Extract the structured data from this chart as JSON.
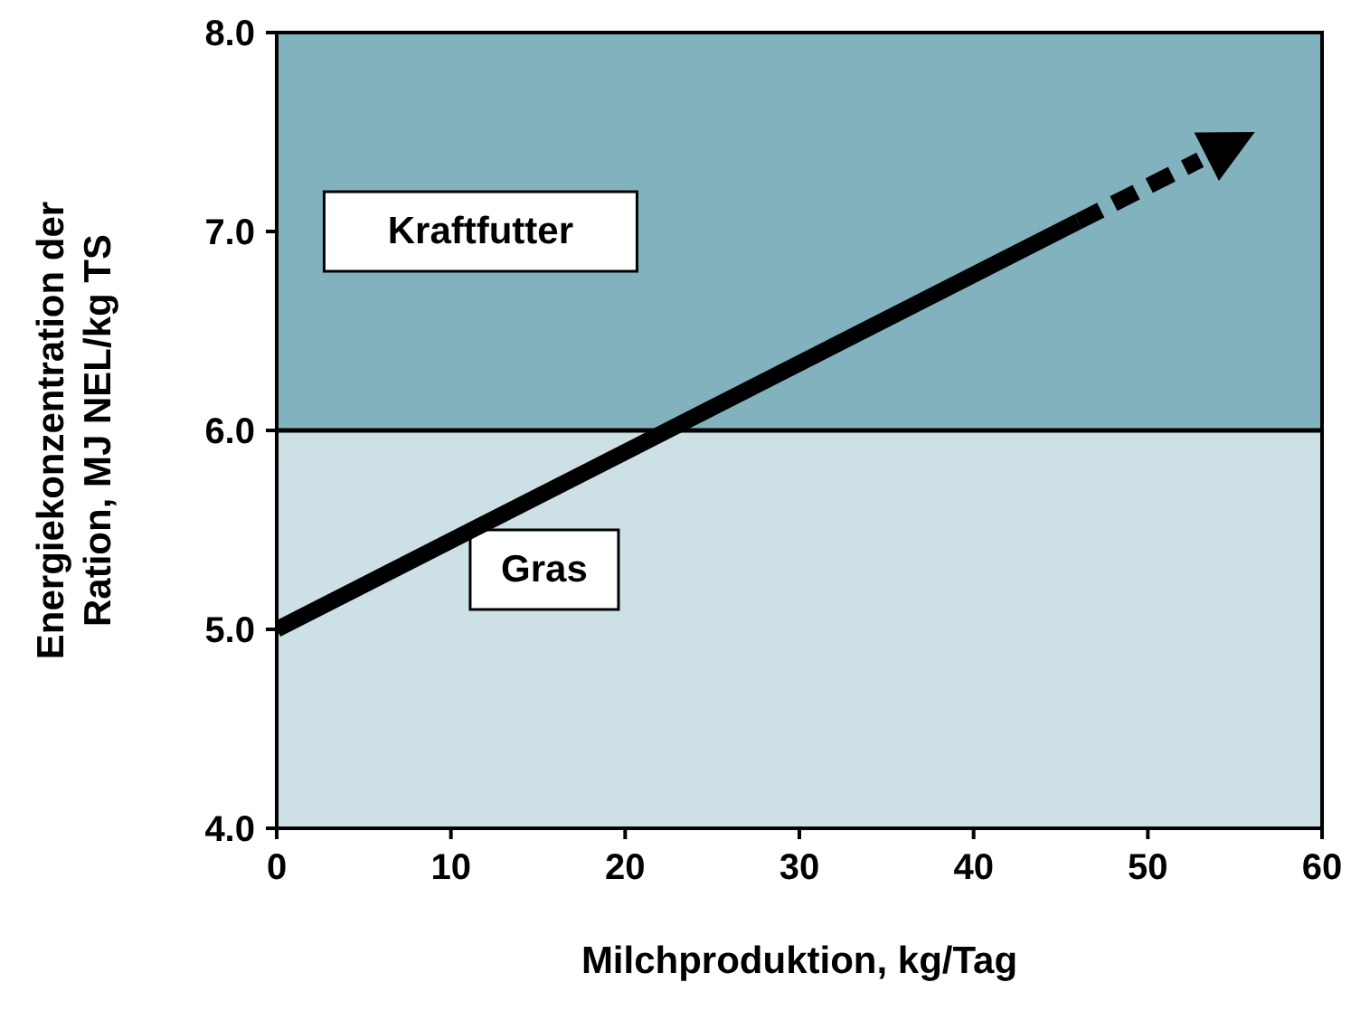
{
  "chart_data": {
    "type": "line",
    "xlabel": "Milchproduktion, kg/Tag",
    "ylabel": "Energiekonzentration der\nRation, MJ NEL/kg TS",
    "xlim": [
      0,
      60
    ],
    "xticks": [
      0,
      10,
      20,
      30,
      40,
      50,
      60
    ],
    "ylim": [
      4,
      8
    ],
    "yticks": [
      {
        "value": 4,
        "label": "4.0"
      },
      {
        "value": 5,
        "label": "5.0"
      },
      {
        "value": 6,
        "label": "6.0"
      },
      {
        "value": 7,
        "label": "7.0"
      },
      {
        "value": 8,
        "label": "8.0"
      }
    ],
    "marker": "none",
    "series": [
      {
        "color": "#000000",
        "line_style": "solid",
        "x": [
          0,
          46
        ],
        "values": [
          5.0,
          7.05
        ]
      },
      {
        "color": "#000000",
        "line_style": "dashed",
        "x": [
          46,
          53
        ],
        "values": [
          7.05,
          7.36
        ]
      }
    ],
    "bands": [
      {
        "axis": "y",
        "from": 4,
        "to": 6,
        "label": "Gras",
        "color": "#cde0e6"
      },
      {
        "axis": "y",
        "from": 6,
        "to": 8,
        "label": "Kraftfutter",
        "color": "#82b2be"
      }
    ],
    "ref_lines": [
      {
        "axis": "y",
        "value": 6,
        "color": "#000000"
      }
    ]
  }
}
